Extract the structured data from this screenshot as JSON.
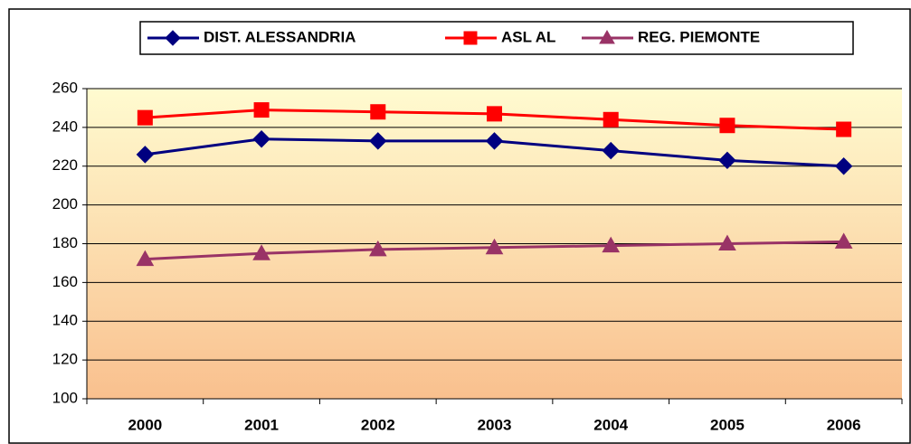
{
  "chart_data": {
    "type": "line",
    "categories": [
      "2000",
      "2001",
      "2002",
      "2003",
      "2004",
      "2005",
      "2006"
    ],
    "series": [
      {
        "name": "DIST. ALESSANDRIA",
        "color": "#000080",
        "marker": "diamond",
        "values": [
          226,
          234,
          233,
          233,
          228,
          223,
          220
        ]
      },
      {
        "name": "ASL AL",
        "color": "#ff0000",
        "marker": "square",
        "values": [
          245,
          249,
          248,
          247,
          244,
          241,
          239
        ]
      },
      {
        "name": "REG. PIEMONTE",
        "color": "#993366",
        "marker": "triangle",
        "values": [
          172,
          175,
          177,
          178,
          179,
          180,
          181
        ]
      }
    ],
    "ylim": [
      100,
      260
    ],
    "yticks": [
      100,
      120,
      140,
      160,
      180,
      200,
      220,
      240,
      260
    ],
    "grid": true,
    "legend": "top"
  }
}
